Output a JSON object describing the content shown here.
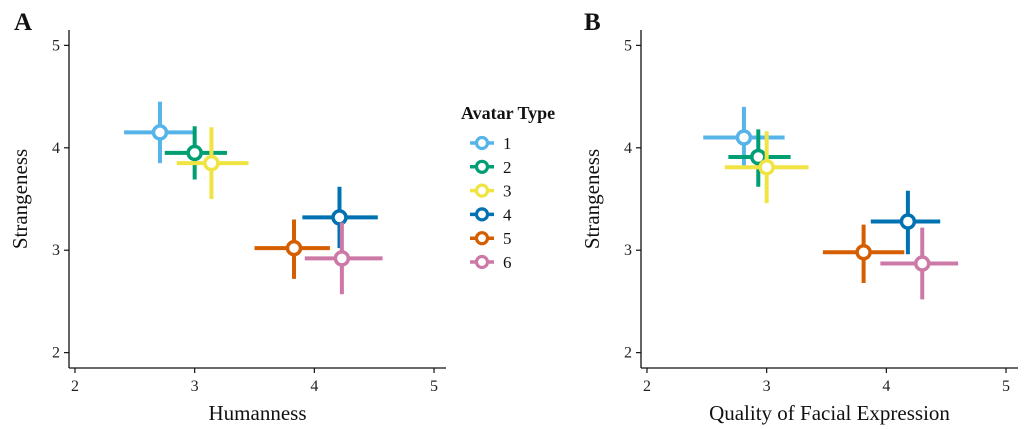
{
  "chart_data": [
    {
      "panel": "A",
      "type": "scatter",
      "title": "",
      "xlabel": "Humanness",
      "ylabel": "Strangeness",
      "xlim": [
        1.95,
        5.1
      ],
      "ylim": [
        1.85,
        5.15
      ],
      "xticks": [
        2,
        3,
        4,
        5
      ],
      "yticks": [
        2,
        3,
        4,
        5
      ],
      "series": [
        {
          "name": "1",
          "x": 2.71,
          "y": 4.15,
          "xerr": [
            2.41,
            3.01
          ],
          "yerr": [
            3.85,
            4.45
          ]
        },
        {
          "name": "2",
          "x": 3.0,
          "y": 3.95,
          "xerr": [
            2.75,
            3.27
          ],
          "yerr": [
            3.69,
            4.21
          ]
        },
        {
          "name": "3",
          "x": 3.14,
          "y": 3.85,
          "xerr": [
            2.85,
            3.45
          ],
          "yerr": [
            3.5,
            4.2
          ]
        },
        {
          "name": "4",
          "x": 4.21,
          "y": 3.32,
          "xerr": [
            3.9,
            4.53
          ],
          "yerr": [
            3.02,
            3.62
          ]
        },
        {
          "name": "5",
          "x": 3.83,
          "y": 3.02,
          "xerr": [
            3.5,
            4.13
          ],
          "yerr": [
            2.72,
            3.3
          ]
        },
        {
          "name": "6",
          "x": 4.23,
          "y": 2.92,
          "xerr": [
            3.92,
            4.57
          ],
          "yerr": [
            2.57,
            3.27
          ]
        }
      ]
    },
    {
      "panel": "B",
      "type": "scatter",
      "title": "",
      "xlabel": "Quality of Facial Expression",
      "ylabel": "Strangeness",
      "xlim": [
        1.95,
        5.1
      ],
      "ylim": [
        1.85,
        5.15
      ],
      "xticks": [
        2,
        3,
        4,
        5
      ],
      "yticks": [
        2,
        3,
        4,
        5
      ],
      "series": [
        {
          "name": "1",
          "x": 2.81,
          "y": 4.1,
          "xerr": [
            2.47,
            3.15
          ],
          "yerr": [
            3.8,
            4.4
          ]
        },
        {
          "name": "2",
          "x": 2.93,
          "y": 3.91,
          "xerr": [
            2.68,
            3.2
          ],
          "yerr": [
            3.62,
            4.18
          ]
        },
        {
          "name": "3",
          "x": 3.0,
          "y": 3.81,
          "xerr": [
            2.65,
            3.35
          ],
          "yerr": [
            3.46,
            4.16
          ]
        },
        {
          "name": "4",
          "x": 4.18,
          "y": 3.28,
          "xerr": [
            3.87,
            4.45
          ],
          "yerr": [
            2.96,
            3.58
          ]
        },
        {
          "name": "5",
          "x": 3.81,
          "y": 2.98,
          "xerr": [
            3.47,
            4.15
          ],
          "yerr": [
            2.68,
            3.25
          ]
        },
        {
          "name": "6",
          "x": 4.3,
          "y": 2.87,
          "xerr": [
            3.95,
            4.6
          ],
          "yerr": [
            2.52,
            3.22
          ]
        }
      ]
    }
  ],
  "legend": {
    "title": "Avatar Type",
    "placement": "center",
    "items": [
      {
        "label": "1",
        "color": "#56B4E9"
      },
      {
        "label": "2",
        "color": "#009E73"
      },
      {
        "label": "3",
        "color": "#F0E442"
      },
      {
        "label": "4",
        "color": "#0072B2"
      },
      {
        "label": "5",
        "color": "#D55E00"
      },
      {
        "label": "6",
        "color": "#CC79A7"
      }
    ]
  }
}
